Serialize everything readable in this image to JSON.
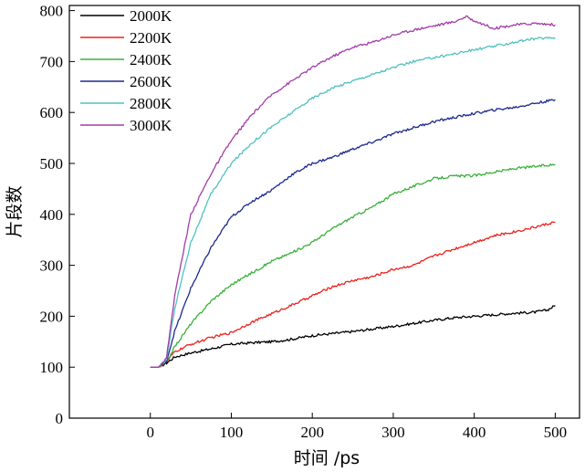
{
  "chart_data": {
    "type": "line",
    "xlabel": "时间 /ps",
    "ylabel": "片段数",
    "xlim": [
      -100,
      530
    ],
    "ylim": [
      0,
      810
    ],
    "xticks": [
      0,
      100,
      200,
      300,
      400,
      500
    ],
    "yticks": [
      0,
      100,
      200,
      300,
      400,
      500,
      600,
      700,
      800
    ],
    "legend_position": "top-left",
    "series": [
      {
        "name": "2000K",
        "color": "#000000",
        "x": [
          0,
          10,
          20,
          30,
          50,
          75,
          100,
          125,
          150,
          175,
          200,
          225,
          250,
          275,
          300,
          325,
          350,
          375,
          400,
          425,
          450,
          475,
          490,
          500
        ],
        "y": [
          100,
          100,
          108,
          120,
          128,
          136,
          145,
          148,
          150,
          155,
          162,
          166,
          170,
          175,
          180,
          186,
          192,
          197,
          200,
          203,
          206,
          208,
          212,
          221
        ]
      },
      {
        "name": "2200K",
        "color": "#e8231f",
        "x": [
          0,
          10,
          20,
          30,
          50,
          75,
          100,
          125,
          150,
          175,
          200,
          225,
          250,
          275,
          300,
          325,
          350,
          375,
          400,
          425,
          450,
          475,
          500
        ],
        "y": [
          100,
          100,
          110,
          130,
          145,
          158,
          168,
          188,
          205,
          222,
          240,
          258,
          270,
          278,
          292,
          300,
          318,
          332,
          345,
          358,
          366,
          375,
          385
        ]
      },
      {
        "name": "2400K",
        "color": "#3ab03a",
        "x": [
          0,
          10,
          20,
          30,
          50,
          75,
          100,
          125,
          150,
          175,
          200,
          225,
          250,
          275,
          300,
          325,
          350,
          375,
          400,
          425,
          450,
          475,
          500
        ],
        "y": [
          100,
          100,
          110,
          140,
          185,
          230,
          262,
          285,
          308,
          325,
          345,
          372,
          395,
          415,
          440,
          455,
          470,
          475,
          476,
          483,
          490,
          494,
          498
        ]
      },
      {
        "name": "2600K",
        "color": "#1c2a8c",
        "x": [
          0,
          10,
          20,
          30,
          50,
          75,
          100,
          125,
          150,
          175,
          200,
          225,
          250,
          275,
          300,
          325,
          350,
          375,
          400,
          425,
          450,
          475,
          500
        ],
        "y": [
          100,
          100,
          112,
          170,
          255,
          335,
          395,
          425,
          448,
          478,
          500,
          512,
          528,
          542,
          558,
          570,
          582,
          590,
          598,
          605,
          610,
          618,
          625
        ]
      },
      {
        "name": "2800K",
        "color": "#52c1c0",
        "x": [
          0,
          10,
          20,
          30,
          50,
          75,
          100,
          125,
          150,
          175,
          200,
          225,
          250,
          275,
          300,
          325,
          350,
          375,
          400,
          425,
          450,
          475,
          500
        ],
        "y": [
          100,
          100,
          115,
          215,
          345,
          440,
          500,
          540,
          572,
          600,
          628,
          648,
          662,
          675,
          688,
          700,
          708,
          715,
          723,
          730,
          738,
          745,
          747
        ]
      },
      {
        "name": "3000K",
        "color": "#a23da8",
        "x": [
          0,
          10,
          20,
          30,
          50,
          75,
          100,
          125,
          150,
          175,
          200,
          225,
          250,
          275,
          300,
          325,
          350,
          375,
          390,
          400,
          425,
          450,
          475,
          500
        ],
        "y": [
          100,
          100,
          118,
          240,
          400,
          480,
          545,
          595,
          635,
          662,
          688,
          710,
          728,
          738,
          752,
          762,
          770,
          778,
          788,
          780,
          765,
          772,
          775,
          772
        ]
      }
    ]
  }
}
